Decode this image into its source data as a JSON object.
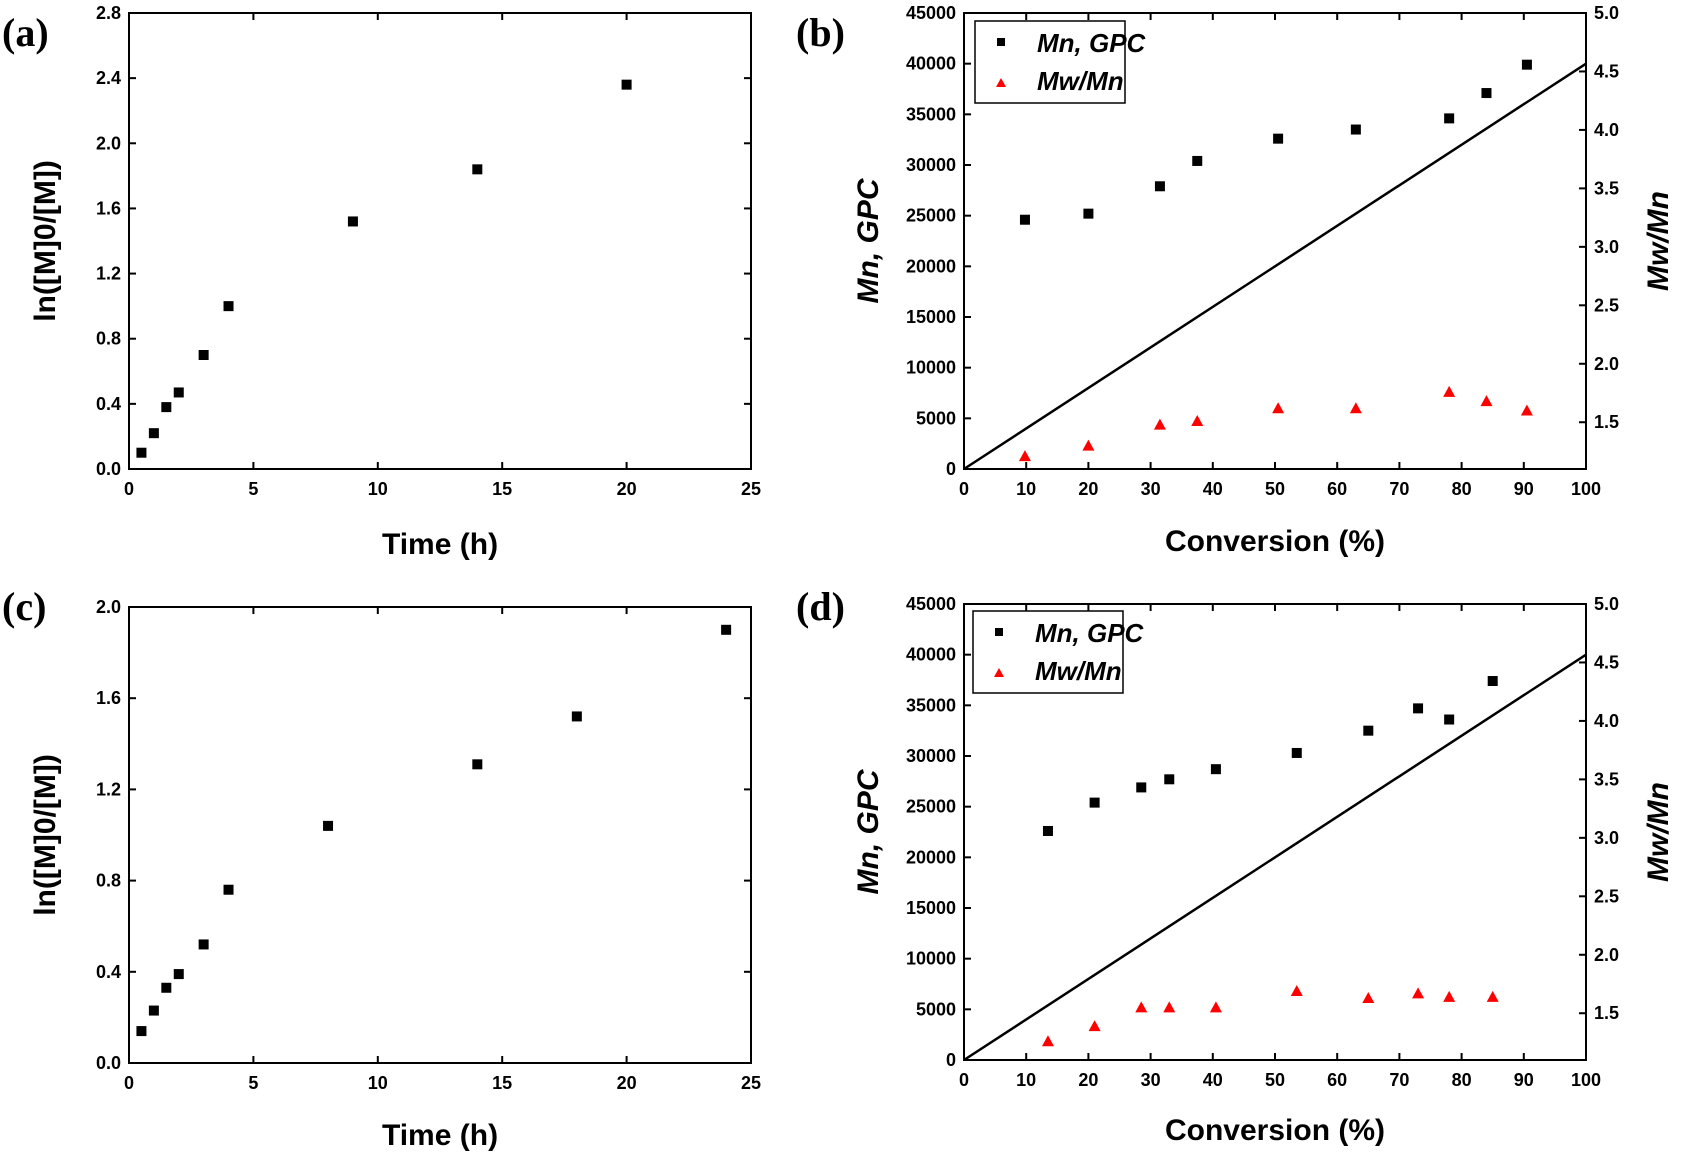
{
  "chart_data": [
    {
      "id": "a",
      "panel_label": "(a)",
      "type": "scatter",
      "xlabel": "Time (h)",
      "ylabel": "ln([M]0/[M])",
      "xlim": [
        0,
        25
      ],
      "ylim": [
        0,
        2.8
      ],
      "xticks": [
        "0",
        "5",
        "10",
        "15",
        "20",
        "25"
      ],
      "yticks": [
        "0.0",
        "0.4",
        "0.8",
        "1.2",
        "1.6",
        "2.0",
        "2.4",
        "2.8"
      ],
      "series": [
        {
          "name": "ln([M]0/[M])",
          "marker": "square",
          "color": "#000000",
          "x": [
            0.5,
            1,
            1.5,
            2,
            3,
            4,
            9,
            14,
            20
          ],
          "y": [
            0.1,
            0.22,
            0.38,
            0.47,
            0.7,
            1.0,
            1.52,
            1.84,
            2.36
          ]
        }
      ]
    },
    {
      "id": "b",
      "panel_label": "(b)",
      "type": "scatter",
      "xlabel": "Conversion (%)",
      "ylabel": "Mn, GPC",
      "y2label": "Mw/Mn",
      "xlim": [
        0,
        100
      ],
      "ylim": [
        0,
        45000
      ],
      "y2lim": [
        1.1,
        5.0
      ],
      "xticks": [
        "0",
        "10",
        "20",
        "30",
        "40",
        "50",
        "60",
        "70",
        "80",
        "90",
        "100"
      ],
      "yticks": [
        "0",
        "5000",
        "10000",
        "15000",
        "20000",
        "25000",
        "30000",
        "35000",
        "40000",
        "45000"
      ],
      "y2ticks": [
        "1.5",
        "2.0",
        "2.5",
        "3.0",
        "3.5",
        "4.0",
        "4.5",
        "5.0"
      ],
      "legend": [
        "Mn, GPC",
        "Mw/Mn"
      ],
      "theory_line": {
        "x": [
          0,
          100
        ],
        "y": [
          0,
          40000
        ]
      },
      "series": [
        {
          "name": "Mn, GPC",
          "marker": "square",
          "color": "#000000",
          "axis": "left",
          "x": [
            9.8,
            20,
            31.5,
            37.5,
            50.5,
            63,
            78,
            84,
            90.5
          ],
          "y": [
            24600,
            25200,
            27900,
            30400,
            32600,
            33500,
            34600,
            37100,
            39900
          ]
        },
        {
          "name": "Mw/Mn",
          "marker": "triangle",
          "color": "#ff0000",
          "axis": "right",
          "x": [
            9.8,
            20,
            31.5,
            37.5,
            50.5,
            63,
            78,
            84,
            90.5
          ],
          "y": [
            1.21,
            1.3,
            1.48,
            1.51,
            1.62,
            1.62,
            1.76,
            1.68,
            1.6
          ]
        }
      ]
    },
    {
      "id": "c",
      "panel_label": "(c)",
      "type": "scatter",
      "xlabel": "Time (h)",
      "ylabel": "ln([M]0/[M])",
      "xlim": [
        0,
        25
      ],
      "ylim": [
        0,
        2.0
      ],
      "xticks": [
        "0",
        "5",
        "10",
        "15",
        "20",
        "25"
      ],
      "yticks": [
        "0.0",
        "0.4",
        "0.8",
        "1.2",
        "1.6",
        "2.0"
      ],
      "series": [
        {
          "name": "ln([M]0/[M])",
          "marker": "square",
          "color": "#000000",
          "x": [
            0.5,
            1,
            1.5,
            2,
            3,
            4,
            8,
            14,
            18,
            24
          ],
          "y": [
            0.14,
            0.23,
            0.33,
            0.39,
            0.52,
            0.76,
            1.04,
            1.31,
            1.52,
            1.9
          ]
        }
      ]
    },
    {
      "id": "d",
      "panel_label": "(d)",
      "type": "scatter",
      "xlabel": "Conversion (%)",
      "ylabel": "Mn, GPC",
      "y2label": "Mw/Mn",
      "xlim": [
        0,
        100
      ],
      "ylim": [
        0,
        45000
      ],
      "y2lim": [
        1.1,
        5.0
      ],
      "xticks": [
        "0",
        "10",
        "20",
        "30",
        "40",
        "50",
        "60",
        "70",
        "80",
        "90",
        "100"
      ],
      "yticks": [
        "0",
        "5000",
        "10000",
        "15000",
        "20000",
        "25000",
        "30000",
        "35000",
        "40000",
        "45000"
      ],
      "y2ticks": [
        "1.5",
        "2.0",
        "2.5",
        "3.0",
        "3.5",
        "4.0",
        "4.5",
        "5.0"
      ],
      "legend": [
        "Mn, GPC",
        "Mw/Mn"
      ],
      "theory_line": {
        "x": [
          0,
          100
        ],
        "y": [
          0,
          40000
        ]
      },
      "series": [
        {
          "name": "Mn, GPC",
          "marker": "square",
          "color": "#000000",
          "axis": "left",
          "x": [
            13.5,
            21,
            28.5,
            33,
            40.5,
            53.5,
            65,
            73,
            78,
            85
          ],
          "y": [
            22600,
            25400,
            26900,
            27700,
            28700,
            30300,
            32500,
            34700,
            33600,
            37400
          ]
        },
        {
          "name": "Mw/Mn",
          "marker": "triangle",
          "color": "#ff0000",
          "axis": "right",
          "x": [
            13.5,
            21,
            28.5,
            33,
            40.5,
            53.5,
            65,
            73,
            78,
            85
          ],
          "y": [
            1.26,
            1.39,
            1.55,
            1.55,
            1.55,
            1.69,
            1.63,
            1.67,
            1.64,
            1.64
          ]
        }
      ]
    }
  ]
}
